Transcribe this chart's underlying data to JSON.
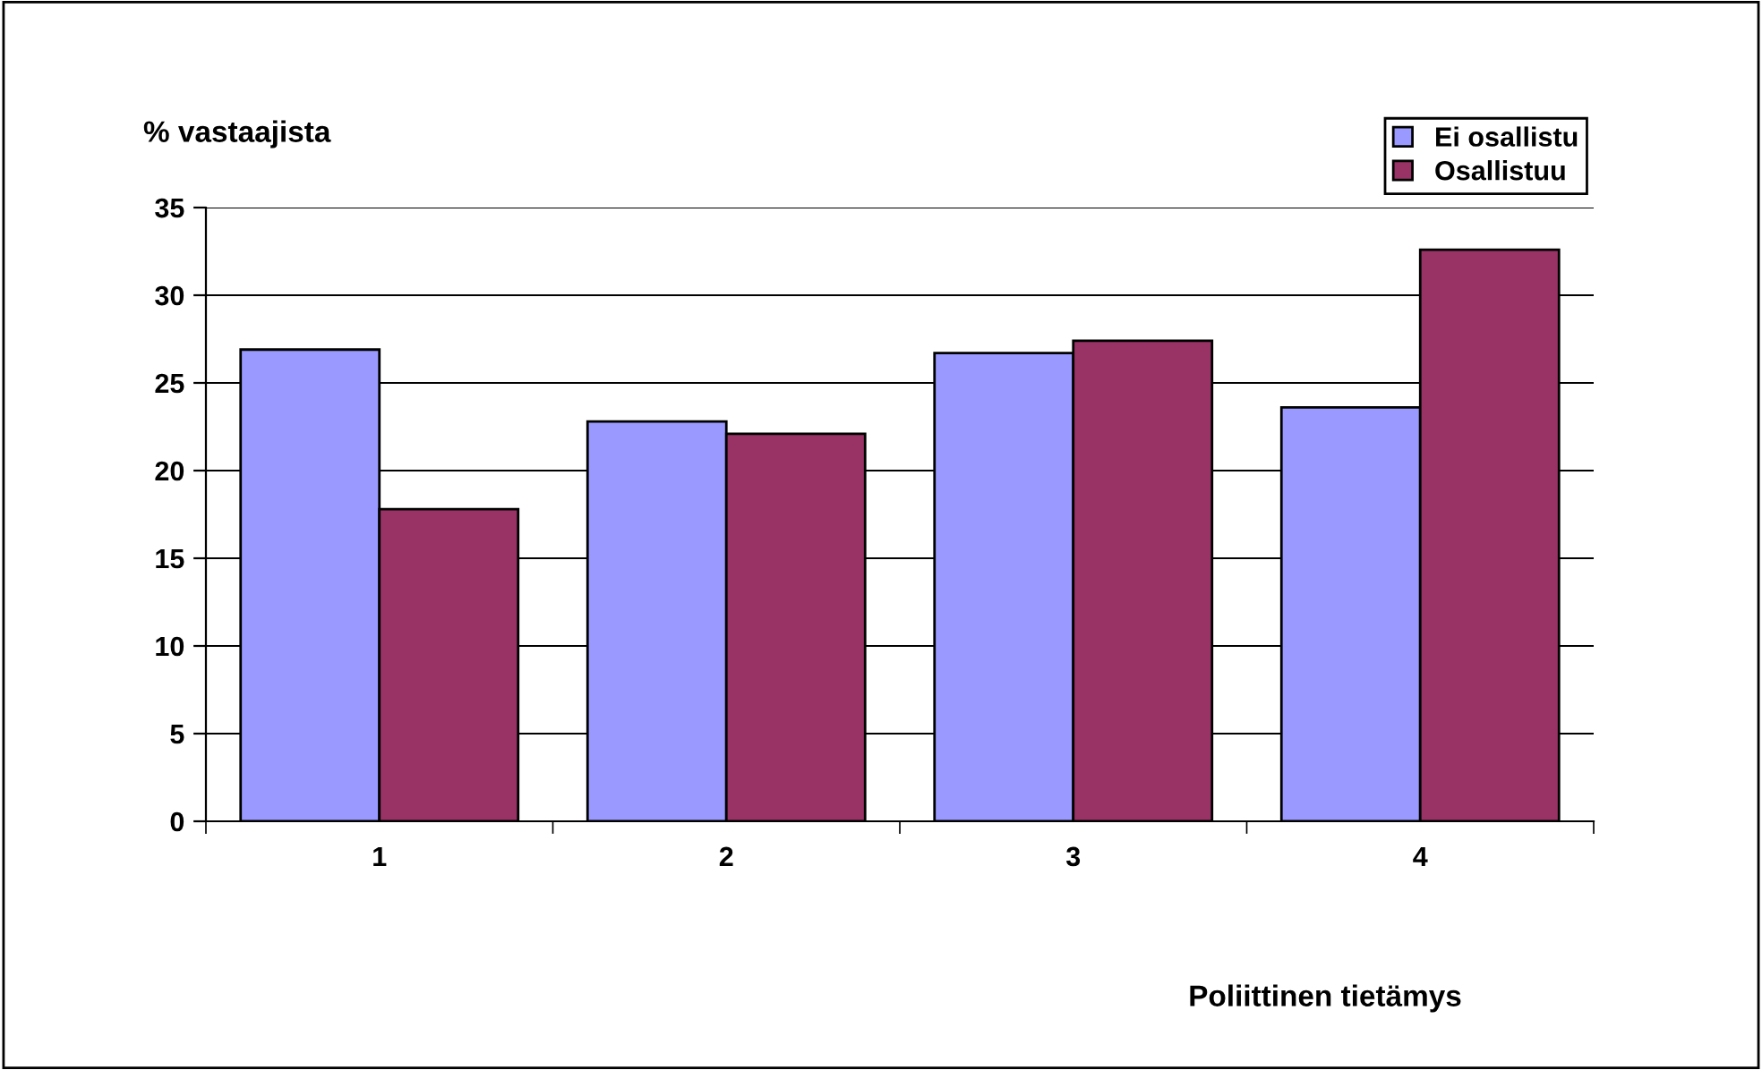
{
  "chart_data": {
    "type": "bar",
    "ylabel": "% vastaajista",
    "xlabel": "Poliittinen tietämys",
    "categories": [
      "1",
      "2",
      "3",
      "4"
    ],
    "series": [
      {
        "name": "Ei osallistu",
        "color": "#9999ff",
        "values": [
          26.9,
          22.8,
          26.7,
          23.6
        ]
      },
      {
        "name": "Osallistuu",
        "color": "#993366",
        "values": [
          17.8,
          22.1,
          27.4,
          32.6
        ]
      }
    ],
    "ylim": [
      0,
      35
    ],
    "yticks": [
      0,
      5,
      10,
      15,
      20,
      25,
      30,
      35
    ],
    "grid": "y",
    "legend": "top right"
  }
}
